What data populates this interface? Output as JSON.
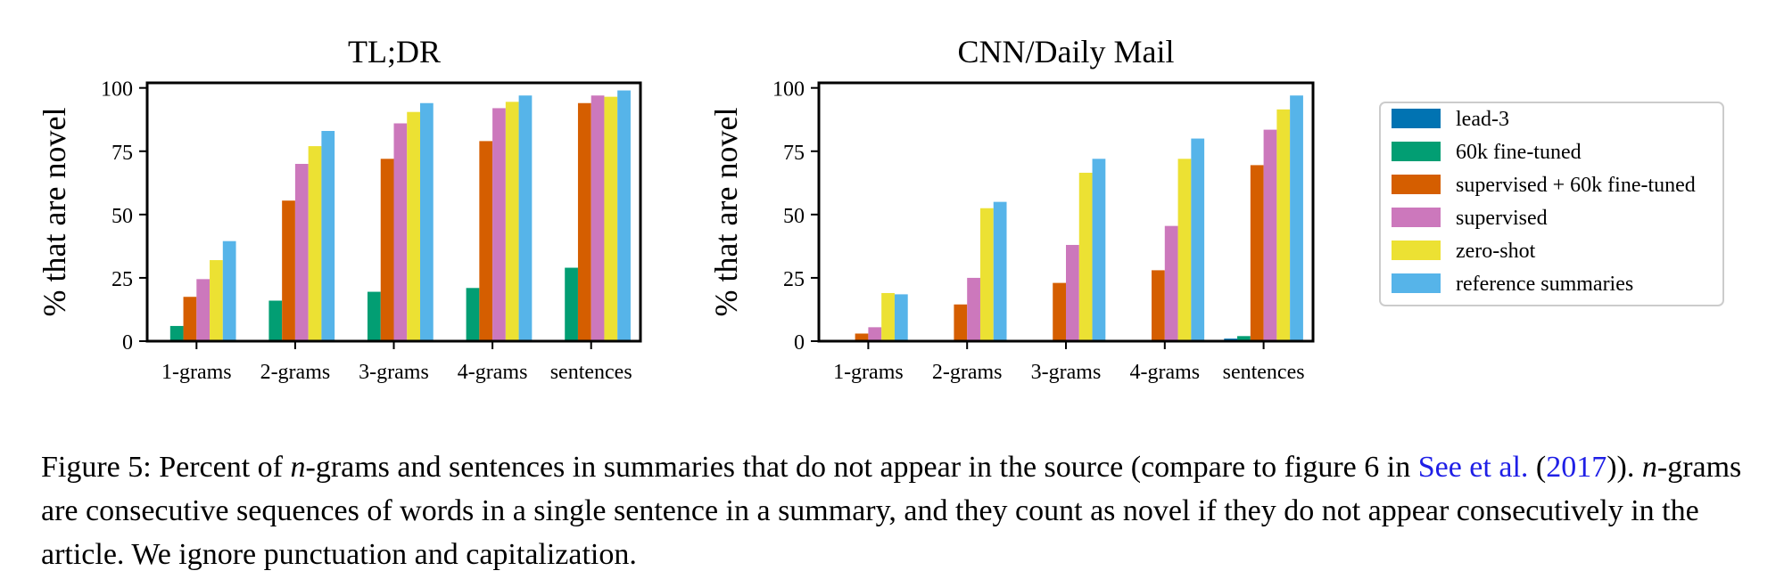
{
  "chart_data": [
    {
      "type": "bar",
      "title": "TL;DR",
      "ylabel": "% that are novel",
      "xlabel": "",
      "categories": [
        "1-grams",
        "2-grams",
        "3-grams",
        "4-grams",
        "sentences"
      ],
      "yticks": [
        "0",
        "25",
        "50",
        "75",
        "100"
      ],
      "ylim": [
        0,
        102
      ],
      "grid": false,
      "series": [
        {
          "name": "lead-3",
          "values": [
            0,
            0,
            0,
            0,
            0
          ]
        },
        {
          "name": "60k fine-tuned",
          "values": [
            6,
            16,
            19.5,
            21,
            29
          ]
        },
        {
          "name": "supervised + 60k fine-tuned",
          "values": [
            17.5,
            55.5,
            72,
            79,
            94
          ]
        },
        {
          "name": "supervised",
          "values": [
            24.5,
            70,
            86,
            92,
            97
          ]
        },
        {
          "name": "zero-shot",
          "values": [
            32,
            77,
            90.5,
            94.5,
            96.5
          ]
        },
        {
          "name": "reference summaries",
          "values": [
            39.5,
            83,
            94,
            97,
            99
          ]
        }
      ]
    },
    {
      "type": "bar",
      "title": "CNN/Daily Mail",
      "ylabel": "% that are novel",
      "xlabel": "",
      "categories": [
        "1-grams",
        "2-grams",
        "3-grams",
        "4-grams",
        "sentences"
      ],
      "yticks": [
        "0",
        "25",
        "50",
        "75",
        "100"
      ],
      "ylim": [
        0,
        102
      ],
      "grid": false,
      "series": [
        {
          "name": "lead-3",
          "values": [
            0,
            0,
            0,
            0,
            1
          ]
        },
        {
          "name": "60k fine-tuned",
          "values": [
            0,
            0,
            0,
            0,
            2
          ]
        },
        {
          "name": "supervised + 60k fine-tuned",
          "values": [
            3,
            14.5,
            23,
            28,
            69.5
          ]
        },
        {
          "name": "supervised",
          "values": [
            5.5,
            25,
            38,
            45.5,
            83.5
          ]
        },
        {
          "name": "zero-shot",
          "values": [
            19,
            52.5,
            66.5,
            72,
            91.5
          ]
        },
        {
          "name": "reference summaries",
          "values": [
            18.5,
            55,
            72,
            80,
            97
          ]
        }
      ]
    }
  ],
  "legend": {
    "placement": "right",
    "items": [
      {
        "label": "lead-3",
        "color": "#0173b2"
      },
      {
        "label": "60k fine-tuned",
        "color": "#029e73"
      },
      {
        "label": "supervised + 60k fine-tuned",
        "color": "#d55e00"
      },
      {
        "label": "supervised",
        "color": "#cc78bc"
      },
      {
        "label": "zero-shot",
        "color": "#ece133"
      },
      {
        "label": "reference summaries",
        "color": "#56b4e9"
      }
    ]
  },
  "caption": {
    "label": "Figure 5:",
    "text_1": " Percent of ",
    "n_1": "n",
    "text_2": "-grams and sentences in summaries that do not appear in the source (compare to figure 6 in ",
    "link_1": "See et al.",
    "text_3": " (",
    "link_2": "2017",
    "text_4": ")). ",
    "n_2": "n",
    "text_5": "-grams are consecutive sequences of words in a single sentence in a summary, and they count as novel if they do not appear consecutively in the article. We ignore punctuation and capitalization."
  }
}
